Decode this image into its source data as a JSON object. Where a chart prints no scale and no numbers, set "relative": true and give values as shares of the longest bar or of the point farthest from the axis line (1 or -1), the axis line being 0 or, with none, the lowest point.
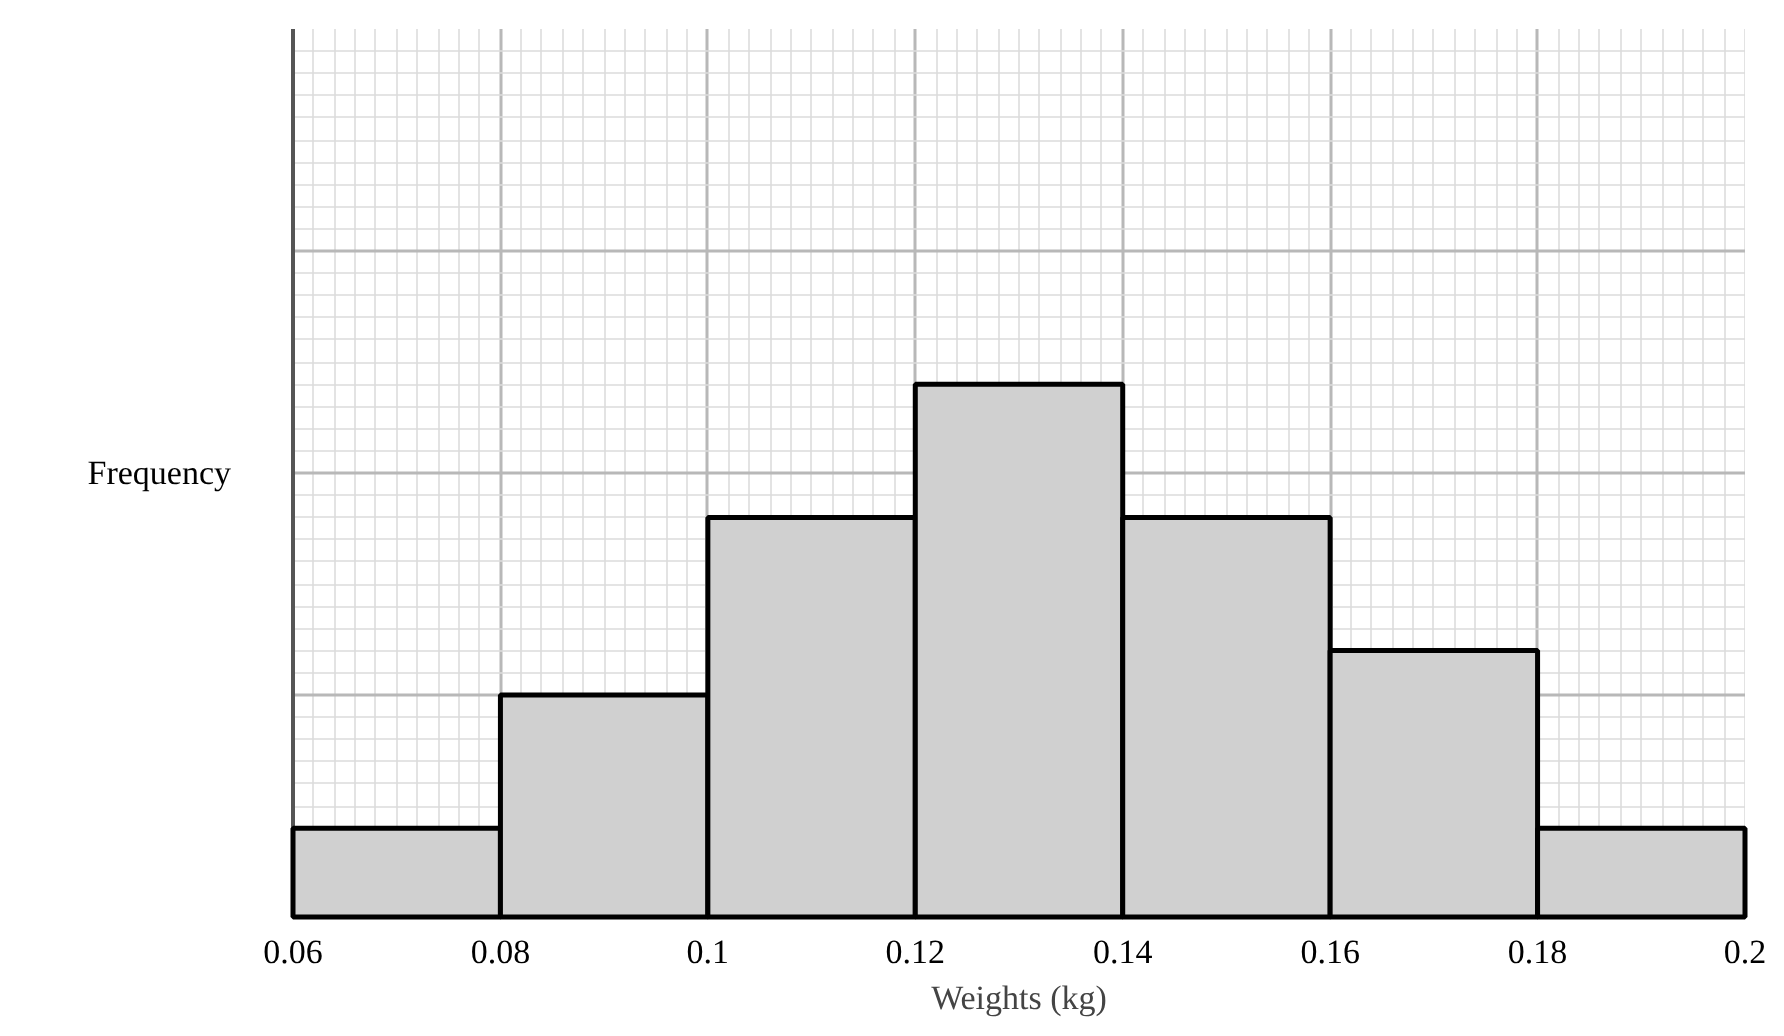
{
  "chart_data": {
    "type": "bar",
    "relative": true,
    "x": [
      0.07,
      0.09,
      0.11,
      0.13,
      0.15,
      0.17,
      0.19
    ],
    "values": [
      0.1667,
      0.4167,
      0.75,
      1,
      0.75,
      0.5,
      0.1667
    ],
    "color": "#d0d0d0",
    "xlim": [
      0.06,
      0.2
    ],
    "xticks": [
      0.06,
      0.08,
      0.1,
      0.12,
      0.14,
      0.16,
      0.18,
      0.2
    ],
    "xlabel": "Weights (kg)",
    "ylabel": "Frequency",
    "grid": true
  }
}
